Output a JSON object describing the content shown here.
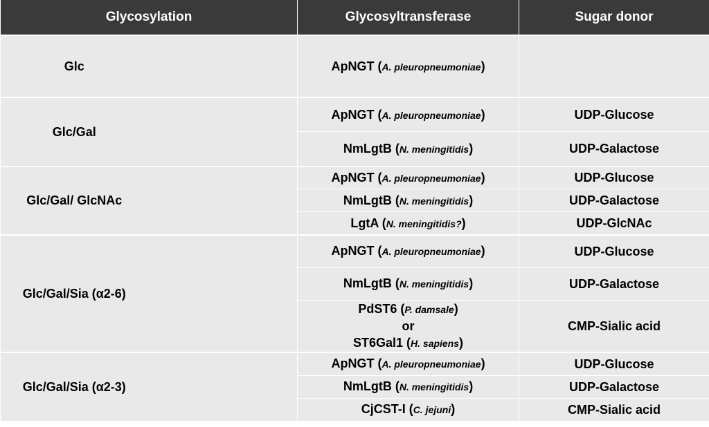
{
  "headers": {
    "glycosylation": "Glycosylation",
    "glycosyltransferase": "Glycosyltransferase",
    "sugar_donor": "Sugar donor"
  },
  "groups": [
    {
      "glycosylation": "Glc",
      "rows": [
        {
          "enzyme": "ApNGT",
          "organism": "A. pleuropneumoniae",
          "donor": ""
        }
      ]
    },
    {
      "glycosylation": "Glc/Gal",
      "rows": [
        {
          "enzyme": "ApNGT",
          "organism": "A. pleuropneumoniae",
          "donor": "UDP-Glucose"
        },
        {
          "enzyme": "NmLgtB",
          "organism": "N. meningitidis",
          "donor": "UDP-Galactose"
        }
      ]
    },
    {
      "glycosylation": "Glc/Gal/ GlcNAc",
      "rows": [
        {
          "enzyme": "ApNGT",
          "organism": "A. pleuropneumoniae",
          "donor": "UDP-Glucose"
        },
        {
          "enzyme": "NmLgtB",
          "organism": "N. meningitidis",
          "donor": "UDP-Galactose"
        },
        {
          "enzyme": "LgtA",
          "organism": "N. meningitidis?",
          "donor": "UDP-GlcNAc"
        }
      ]
    },
    {
      "glycosylation": "Glc/Gal/Sia (α2-6)",
      "rows": [
        {
          "enzyme": "ApNGT",
          "organism": "A. pleuropneumoniae",
          "donor": "UDP-Glucose"
        },
        {
          "enzyme": "NmLgtB",
          "organism": "N. meningitidis",
          "donor": "UDP-Galactose"
        },
        {
          "enzyme": "PdST6",
          "organism": "P. damsale",
          "or": "or",
          "enzyme2": "ST6Gal1",
          "organism2": "H. sapiens",
          "donor": "CMP-Sialic acid"
        }
      ]
    },
    {
      "glycosylation": "Glc/Gal/Sia (α2-3)",
      "rows": [
        {
          "enzyme": "ApNGT",
          "organism": "A. pleuropneumoniae",
          "donor": "UDP-Glucose"
        },
        {
          "enzyme": "NmLgtB",
          "organism": "N. meningitidis",
          "donor": "UDP-Galactose"
        },
        {
          "enzyme": "CjCST-I",
          "organism": "C. jejuni",
          "donor": "CMP-Sialic acid"
        }
      ]
    }
  ]
}
